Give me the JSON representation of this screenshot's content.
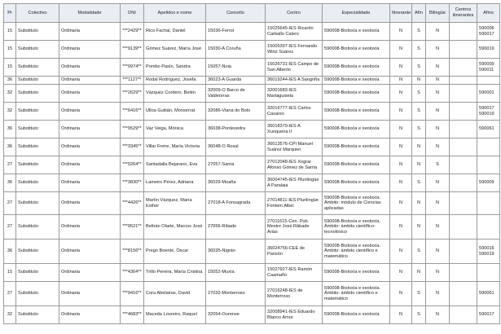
{
  "headers": [
    "Pr",
    "Colectivo",
    "Modalidade",
    "DNI",
    "Apelidos e nome",
    "Concello",
    "Centro",
    "Especialidade",
    "Itinerante",
    "Afín",
    "Bilingüe",
    "Centros itinerantes",
    "Afíns"
  ],
  "rows": [
    [
      "15",
      "Substituto",
      "Ordinaria",
      "***2429**",
      "Rico Fachal, Daniel",
      "15036-Ferrol",
      "15025645-IES Ricardo Carballo Calero",
      "590008-Bioloxía e xeoloxía",
      "N",
      "S",
      "N",
      "",
      "590006 590017"
    ],
    [
      "15",
      "Substituto",
      "Ordinaria",
      "***9139**",
      "Gómez Suárez, María José",
      "15030-A Coruña",
      "15005397-IES Fernando Wirtz Suárez",
      "590008-Bioloxía e xeoloxía",
      "N",
      "S",
      "N",
      "",
      "590019"
    ],
    [
      "15",
      "Substituto",
      "Ordinaria",
      "***9974**",
      "Pombo Pasín, Sandra",
      "15057-Noia",
      "15026731-IES Campo de San Alberto",
      "590008-Bioloxía e xeoloxía",
      "N",
      "S",
      "N",
      "",
      "590009 590011"
    ],
    [
      "36",
      "Substituto",
      "Ordinaria",
      "***1127**",
      "Rodal Rodríguez, Josefa",
      "36023-A Guarda",
      "36019244-IES A Sangriña",
      "590008-Bioloxía e xeoloxía",
      "N",
      "N",
      "N",
      "",
      ""
    ],
    [
      "32",
      "Substituto",
      "Ordinaria",
      "***2629**",
      "Vázquez Cordero, Belén",
      "32009-O Barco de Valdeorras",
      "32001683-IES Martaguisela",
      "590008-Bioloxía e xeoloxía",
      "N",
      "S",
      "N",
      "",
      "590001"
    ],
    [
      "32",
      "Substituto",
      "Ordinaria",
      "***6416**",
      "Ulloa Guitián, Monserrat",
      "32086-Viana do Bolo",
      "32016777-IES Carlos Casares",
      "590008-Bioloxía e xeoloxía",
      "N",
      "S",
      "N",
      "",
      "590017 590019"
    ],
    [
      "36",
      "Substituto",
      "Ordinaria",
      "***9529**",
      "Vaz Veiga, Mónica",
      "36038-Pontevedra",
      "36018379-IES A Xunqueira II",
      "590008-Bioloxía e xeoloxía",
      "N",
      "S",
      "N",
      "",
      "590061"
    ],
    [
      "36",
      "Substituto",
      "Ordinaria",
      "***3345**",
      "Villar Freire, María Victoria",
      "36048-O Rosal",
      "36013576-CPI Manuel Suárez Marquier",
      "590008-Bioloxía e xeoloxía",
      "N",
      "N",
      "N",
      "",
      ""
    ],
    [
      "27",
      "Substituto",
      "Ordinaria",
      "***0264**",
      "Santadalla Bejarano, Eva",
      "27057-Sarria",
      "27012048-IES Xograr Afonso Gómez de Sarria",
      "590008-Bioloxía e xeoloxía",
      "N",
      "N",
      "S",
      "",
      ""
    ],
    [
      "36",
      "Substituto",
      "Ordinaria",
      "***3830**",
      "Lameiro Pérez, Adriana",
      "36029-Moaña",
      "36004745-IES Plurilingüe A Paralaia",
      "590008-Bioloxía e xeoloxía",
      "N",
      "S",
      "N",
      "",
      "590009"
    ],
    [
      "27",
      "Substituto",
      "Ordinaria",
      "***4426**",
      "Martín Vázquez, María Esther",
      "27018-A Fonsagrada",
      "27014811-IES Plurilingüe Fontem Albei",
      "590008-Bioloxía e xeoloxía. Ámbito: módulo de Ciencias aplicadas",
      "N",
      "N",
      "N",
      "",
      ""
    ],
    [
      "27",
      "Substituto",
      "Ordinaria",
      "***9521**",
      "Beltrán Olarte, Marcos José",
      "27056-Ribade",
      "27011615-Cen. Pub. Mestre José Rábade Arias",
      "590008-Bioloxía e xeoloxía. Ámbito: ámbito científico-tecnolóxico",
      "N",
      "N",
      "N",
      "",
      ""
    ],
    [
      "36",
      "Substituto",
      "Ordinaria",
      "***8156**",
      "Prego Boente, Óscar",
      "36035-Nigrán",
      "36024756-CEE de Panxón",
      "590008-Bioloxía e xeoloxía. Ámbito: ámbito científico e matemático",
      "N",
      "S",
      "N",
      "",
      "590016 590019"
    ],
    [
      "15",
      "Substituto",
      "Ordinaria",
      "***4364**",
      "Trillo Pereira, María Cristina",
      "15052-Muxía",
      "15027927-IES Ramón Caamaño",
      "590008-Bioloxía e xeoloxía",
      "N",
      "N",
      "N",
      "",
      ""
    ],
    [
      "27",
      "Substituto",
      "Ordinaria",
      "***9416**",
      "Cora Abelairas, David",
      "27032-Monterroso",
      "27016248-IES de Monterroso",
      "590008-Bioloxía e xeoloxía. Ámbito: ámbito científico e matemático",
      "N",
      "S",
      "N",
      "",
      "590061"
    ],
    [
      "32",
      "Substituto",
      "Ordinaria",
      "***4683**",
      "Maceda Loureiro, Raquel",
      "32054-Ourense",
      "32008941-IES Eduardo Blanco Amor",
      "590008-Bioloxía e xeoloxía",
      "N",
      "S",
      "N",
      "",
      "590017"
    ]
  ]
}
